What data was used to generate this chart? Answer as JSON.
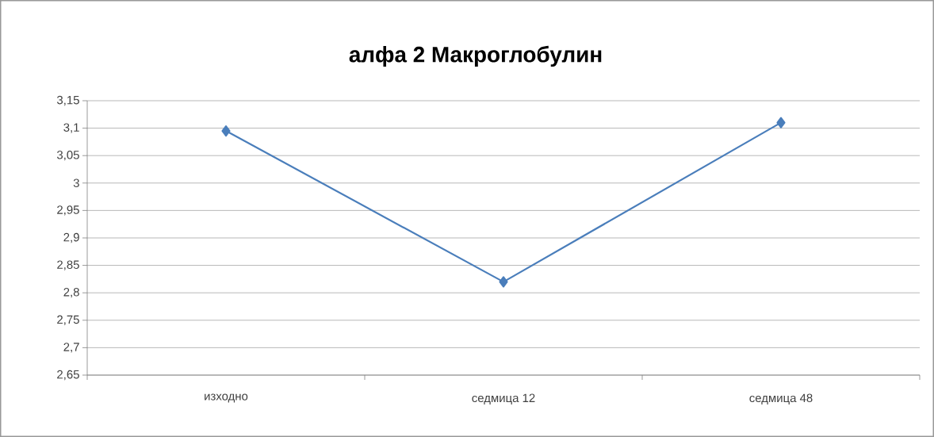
{
  "chart_data": {
    "type": "line",
    "title": "алфа 2 Макроглобулин",
    "categories": [
      "изходно",
      "седмица 12",
      "седмица 48"
    ],
    "series": [
      {
        "color": "#4a7ebb",
        "values": [
          3.095,
          2.82,
          3.11
        ]
      }
    ],
    "ylim": [
      2.65,
      3.15
    ],
    "yticks": [
      {
        "value": 2.65,
        "label": "2,65"
      },
      {
        "value": 2.7,
        "label": "2,7"
      },
      {
        "value": 2.75,
        "label": "2,75"
      },
      {
        "value": 2.8,
        "label": "2,8"
      },
      {
        "value": 2.85,
        "label": "2,85"
      },
      {
        "value": 2.9,
        "label": "2,9"
      },
      {
        "value": 2.95,
        "label": "2,95"
      },
      {
        "value": 3,
        "label": "3"
      },
      {
        "value": 3.05,
        "label": "3,05"
      },
      {
        "value": 3.1,
        "label": "3,1"
      },
      {
        "value": 3.15,
        "label": "3,15"
      }
    ],
    "grid": "y",
    "marker": "diamond",
    "line_style": "solid"
  }
}
